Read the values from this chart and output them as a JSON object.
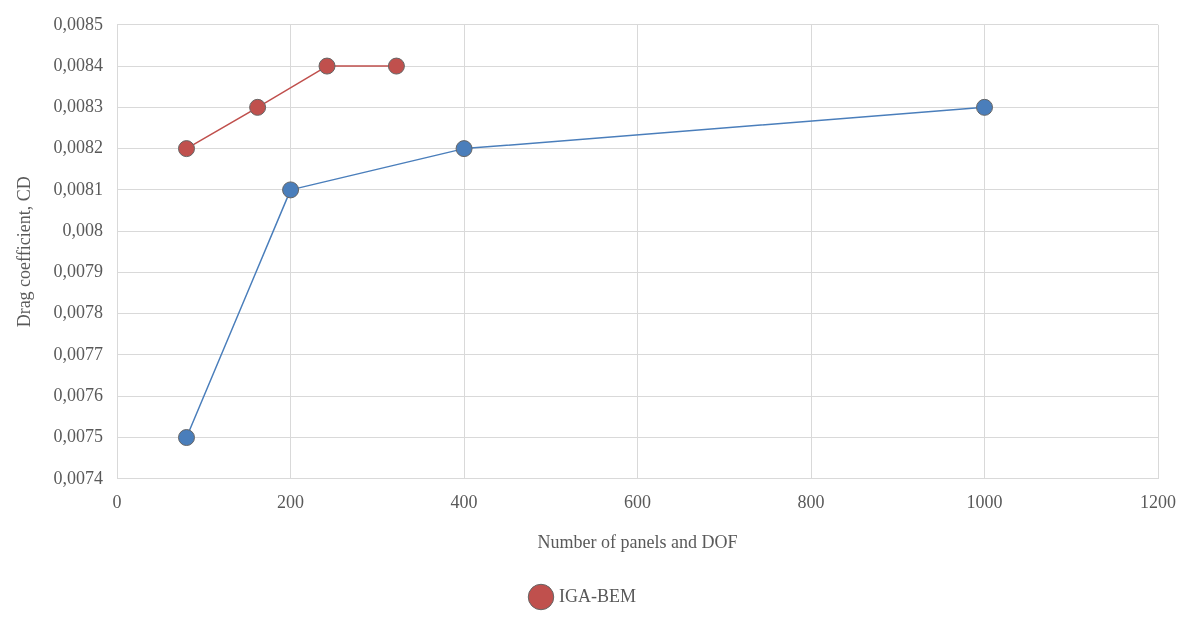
{
  "chart_data": {
    "type": "line",
    "xlabel": "Number of panels and DOF",
    "ylabel": "Drag coefficient, CD",
    "series": [
      {
        "color": "#4a7ebb",
        "x": [
          80,
          200,
          400,
          1000
        ],
        "values": [
          0.0075,
          0.0081,
          0.0082,
          0.0083
        ]
      },
      {
        "name": "IGA-BEM",
        "color": "#c0504d",
        "x": [
          80,
          162,
          242,
          322
        ],
        "values": [
          0.0082,
          0.0083,
          0.0084,
          0.0084
        ]
      }
    ],
    "xlim": [
      0,
      1200
    ],
    "xticks": [
      0,
      200,
      400,
      600,
      800,
      1000,
      1200
    ],
    "ylim": [
      0.0074,
      0.0085
    ],
    "yticks": [
      {
        "value": 0.0074,
        "label": "0,0074"
      },
      {
        "value": 0.0075,
        "label": "0,0075"
      },
      {
        "value": 0.0076,
        "label": "0,0076"
      },
      {
        "value": 0.0077,
        "label": "0,0077"
      },
      {
        "value": 0.0078,
        "label": "0,0078"
      },
      {
        "value": 0.0079,
        "label": "0,0079"
      },
      {
        "value": 0.008,
        "label": "0,008"
      },
      {
        "value": 0.0081,
        "label": "0,0081"
      },
      {
        "value": 0.0082,
        "label": "0,0082"
      },
      {
        "value": 0.0083,
        "label": "0,0083"
      },
      {
        "value": 0.0084,
        "label": "0,0084"
      },
      {
        "value": 0.0085,
        "label": "0,0085"
      }
    ],
    "grid": true,
    "legend": "bottom",
    "marker": "circle",
    "line_style": "solid"
  }
}
